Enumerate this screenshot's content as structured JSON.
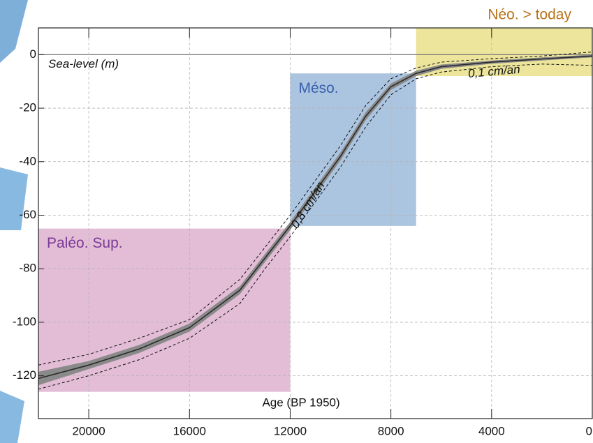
{
  "chart_data": {
    "type": "line",
    "y_label": "Sea-level (m)",
    "x_label": "Age (BP 1950)",
    "xlim": [
      22000,
      0
    ],
    "ylim": [
      -136,
      10
    ],
    "xticks": [
      20000,
      16000,
      12000,
      8000,
      4000,
      0
    ],
    "yticks": [
      -120,
      -100,
      -80,
      -60,
      -40,
      -20,
      0
    ],
    "grid": true,
    "color": "#2a2a2a",
    "band_color": "#8a8a8a",
    "x": [
      22000,
      20000,
      18000,
      16000,
      14000,
      13000,
      12000,
      11000,
      10000,
      9000,
      8000,
      7000,
      6000,
      4000,
      2000,
      0
    ],
    "values": [
      -121,
      -116,
      -110,
      -102,
      -88,
      -76,
      -64,
      -51,
      -38,
      -23,
      -12,
      -7,
      -4.5,
      -2.8,
      -1.6,
      -0.5
    ],
    "band": {
      "upper": [
        -118.5,
        -114.5,
        -108.5,
        -100.5,
        -86.5,
        -74.5,
        -62.5,
        -49.5,
        -36.5,
        -21.5,
        -10.8,
        -6,
        -3.7,
        -2.2,
        -1,
        0
      ],
      "lower": [
        -123.5,
        -117.5,
        -111.5,
        -103.5,
        -89.5,
        -77.5,
        -65.5,
        -52.5,
        -39.5,
        -24.5,
        -13.2,
        -8,
        -5.3,
        -3.4,
        -2.2,
        -1
      ]
    },
    "envelope": {
      "upper": [
        -116,
        -112,
        -106,
        -99,
        -84,
        -72,
        -60,
        -47,
        -34,
        -19,
        -9,
        -5,
        -2.8,
        -1.5,
        -0.5,
        1
      ],
      "lower": [
        -125,
        -120,
        -114,
        -106,
        -93,
        -80,
        -68,
        -55,
        -42,
        -27,
        -15,
        -9,
        -6.5,
        -4.5,
        -3.5,
        -4
      ]
    },
    "regions": [
      {
        "label": "Paléo. Sup.",
        "color": "#d9a6c8",
        "label_color": "#7a3a96",
        "xlim": [
          22000,
          12000
        ],
        "ylim": [
          -65,
          -126
        ]
      },
      {
        "label": "Méso.",
        "color": "#8fb0d4",
        "label_color": "#3a5fae",
        "xlim": [
          12000,
          7000
        ],
        "ylim": [
          -7,
          -64
        ]
      },
      {
        "label": "Néo. > today",
        "color": "#e6dc79",
        "label_color": "#b8741a",
        "xlim": [
          7000,
          0
        ],
        "ylim": [
          10,
          -8
        ]
      }
    ],
    "annotations": [
      "0,8 cm/an",
      "0,1 cm/an"
    ]
  }
}
